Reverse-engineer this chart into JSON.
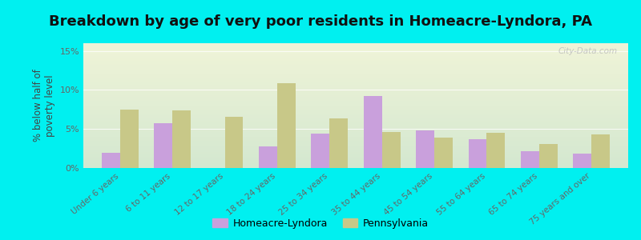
{
  "title": "Breakdown by age of very poor residents in Homeacre-Lyndora, PA",
  "ylabel": "% below half of\npoverty level",
  "categories": [
    "Under 6 years",
    "6 to 11 years",
    "12 to 17 years",
    "18 to 24 years",
    "25 to 34 years",
    "35 to 44 years",
    "45 to 54 years",
    "55 to 64 years",
    "65 to 74 years",
    "75 years and over"
  ],
  "homeacre_values": [
    2.0,
    5.7,
    0.0,
    2.8,
    4.4,
    9.2,
    4.8,
    3.7,
    2.2,
    1.8
  ],
  "pennsylvania_values": [
    7.5,
    7.4,
    6.6,
    10.9,
    6.4,
    4.6,
    3.9,
    4.5,
    3.1,
    4.3
  ],
  "homeacre_color": "#c9a0dc",
  "pennsylvania_color": "#c8c888",
  "background_top": "#f0f4d8",
  "background_bottom": "#d4e8d0",
  "outer_background": "#00f0f0",
  "ylim": [
    0,
    16
  ],
  "yticks": [
    0,
    5,
    10,
    15
  ],
  "ytick_labels": [
    "0%",
    "5%",
    "10%",
    "15%"
  ],
  "bar_width": 0.35,
  "title_fontsize": 13,
  "legend_labels": [
    "Homeacre-Lyndora",
    "Pennsylvania"
  ],
  "watermark": "City-Data.com"
}
